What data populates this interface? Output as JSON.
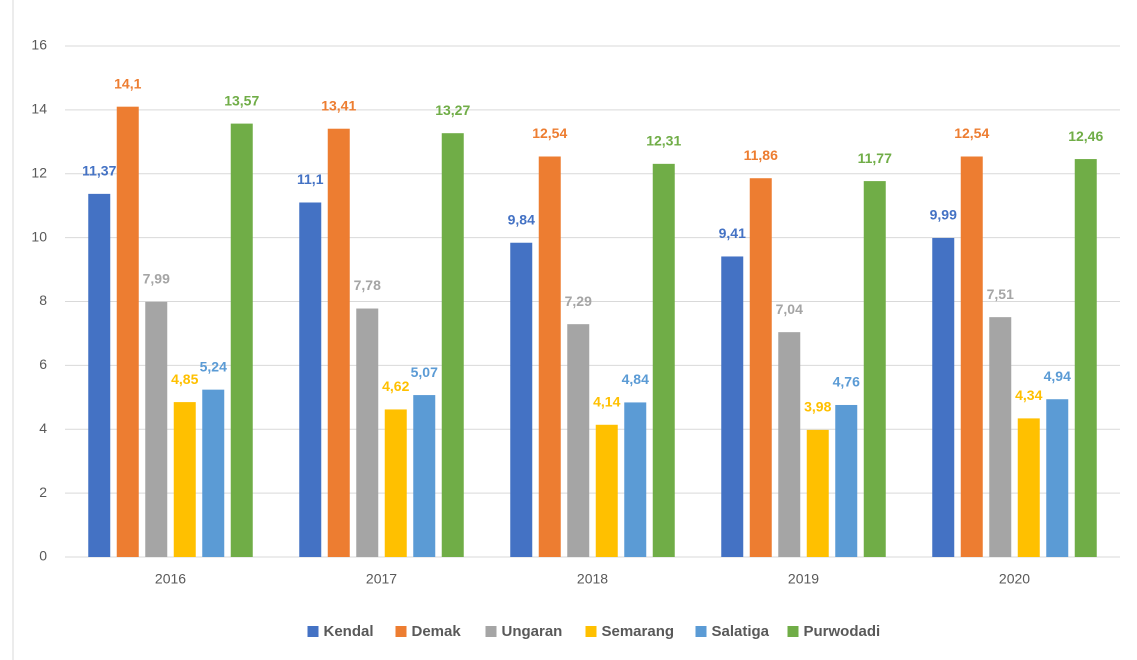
{
  "chart_data": {
    "type": "bar",
    "categories": [
      "2016",
      "2017",
      "2018",
      "2019",
      "2020"
    ],
    "series": [
      {
        "name": "Kendal",
        "color": "#4472c4",
        "values": [
          11.37,
          11.1,
          9.84,
          9.41,
          9.99
        ],
        "value_labels": [
          "11,37",
          "11,1",
          "9,84",
          "9,41",
          "9,99"
        ]
      },
      {
        "name": "Demak",
        "color": "#ed7d31",
        "values": [
          14.1,
          13.41,
          12.54,
          11.86,
          12.54
        ],
        "value_labels": [
          "14,1",
          "13,41",
          "12,54",
          "11,86",
          "12,54"
        ]
      },
      {
        "name": "Ungaran",
        "color": "#a5a5a5",
        "values": [
          7.99,
          7.78,
          7.29,
          7.04,
          7.51
        ],
        "value_labels": [
          "7,99",
          "7,78",
          "7,29",
          "7,04",
          "7,51"
        ]
      },
      {
        "name": "Semarang",
        "color": "#ffc000",
        "values": [
          4.85,
          4.62,
          4.14,
          3.98,
          4.34
        ],
        "value_labels": [
          "4,85",
          "4,62",
          "4,14",
          "3,98",
          "4,34"
        ]
      },
      {
        "name": "Salatiga",
        "color": "#5b9bd5",
        "values": [
          5.24,
          5.07,
          4.84,
          4.76,
          4.94
        ],
        "value_labels": [
          "5,24",
          "5,07",
          "4,84",
          "4,76",
          "4,94"
        ]
      },
      {
        "name": "Purwodadi",
        "color": "#70ad47",
        "values": [
          13.57,
          13.27,
          12.31,
          11.77,
          12.46
        ],
        "value_labels": [
          "13,57",
          "13,27",
          "12,31",
          "11,77",
          "12,46"
        ]
      }
    ],
    "ylim": [
      0,
      16
    ],
    "yticks": [
      0,
      2,
      4,
      6,
      8,
      10,
      12,
      14,
      16
    ],
    "grid": true,
    "legend": "bottom"
  }
}
